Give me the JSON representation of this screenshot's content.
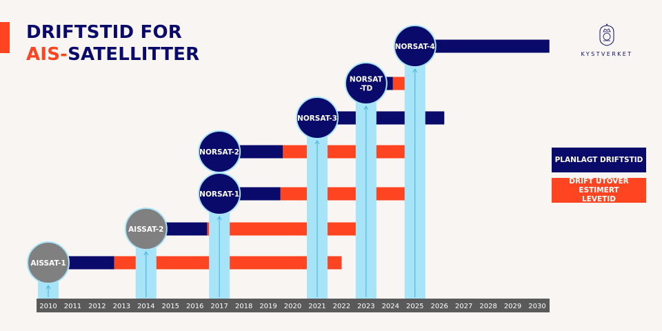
{
  "title": {
    "line1": "DRIFTSTID FOR",
    "line2_highlight": "AIS-",
    "line2_rest": "SATELLITTER"
  },
  "logo": {
    "text": "KYSTVERKET"
  },
  "legend": {
    "planned": "PLANLAGT DRIFTSTID",
    "extended": "DRIFT UTOVER ESTIMERT LEVETID"
  },
  "colors": {
    "navy": "#0a0a6b",
    "orange": "#ff4422",
    "lightblue": "#a8e4f8",
    "gray": "#808080",
    "axis": "#5a5a5a",
    "background": "#f8f5f2"
  },
  "chart_data": {
    "type": "gantt",
    "title": "DRIFTSTID FOR AIS-SATELLITTER",
    "x_ticks": [
      "2010",
      "2011",
      "2012",
      "2013",
      "2014",
      "2015",
      "2016",
      "2017",
      "2018",
      "2019",
      "2020",
      "2021",
      "2022",
      "2023",
      "2024",
      "2025",
      "2026",
      "2027",
      "2028",
      "2029",
      "2030"
    ],
    "xlim": [
      2009.5,
      2030.5
    ],
    "series": [
      {
        "name": "AISSAT-1",
        "launch": 2010,
        "planned_end": 2012.7,
        "extended_end": 2022.0,
        "status": "retired"
      },
      {
        "name": "AISSAT-2",
        "launch": 2014,
        "planned_end": 2016.5,
        "extended_end": 2022.6,
        "status": "retired"
      },
      {
        "name": "NORSAT-1",
        "launch": 2017,
        "planned_end": 2019.5,
        "extended_end": 2025.4,
        "status": "active"
      },
      {
        "name": "NORSAT-2",
        "launch": 2017,
        "planned_end": 2019.6,
        "extended_end": 2025.4,
        "status": "active"
      },
      {
        "name": "NORSAT-3",
        "launch": 2021,
        "planned_end": 2026.2,
        "extended_end": null,
        "status": "active"
      },
      {
        "name": "NORSAT\n-TD",
        "launch": 2023,
        "planned_end": 2024.1,
        "extended_end": 2025.4,
        "status": "active"
      },
      {
        "name": "NORSAT-4",
        "launch": 2025,
        "planned_end": 2030.5,
        "extended_end": null,
        "status": "active"
      }
    ]
  }
}
